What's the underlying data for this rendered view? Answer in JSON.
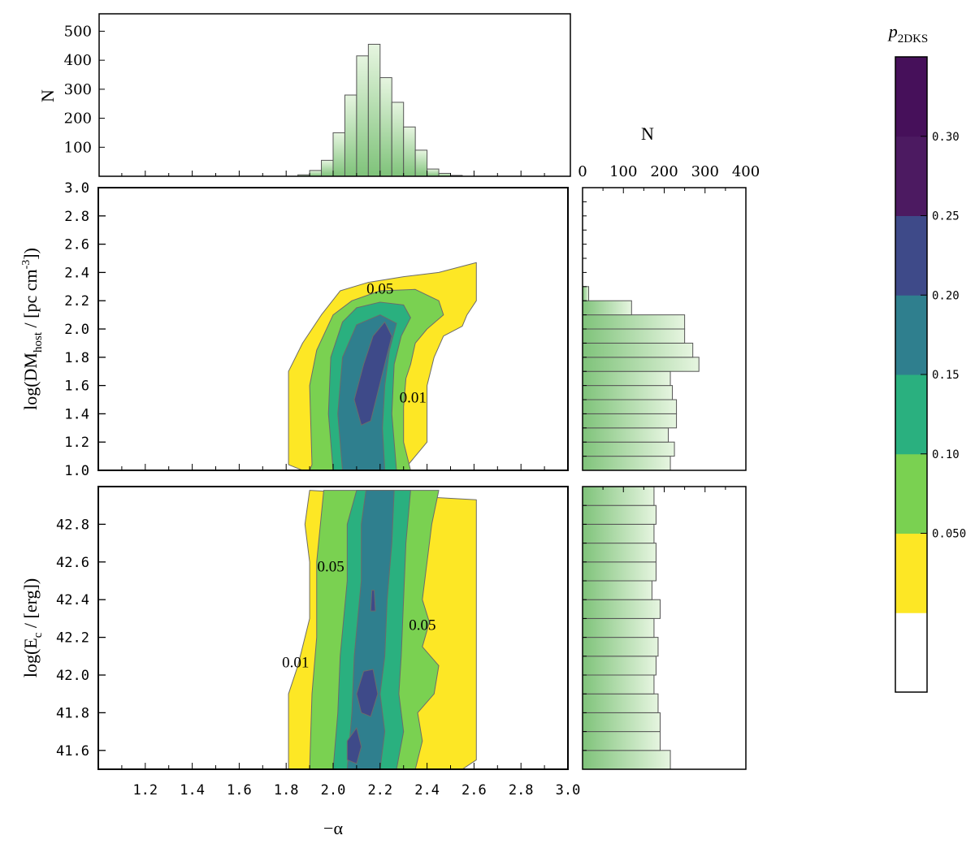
{
  "colors": {
    "yellow": "#fde725",
    "green": "#7ad151",
    "teal": "#2ab07f",
    "blue_teal": "#2f7f8e",
    "blue": "#3e4a89",
    "purple": "#4c1a61",
    "dark_purple": "#46105a",
    "hist_fill_light": "#e6f5e0",
    "hist_fill_dark": "#7fc37a",
    "hist_edge": "#555555"
  },
  "chart_data": [
    {
      "id": "top_hist",
      "type": "bar",
      "ylabel": "N",
      "xlim": [
        1.0,
        3.0
      ],
      "ylim": [
        0,
        560
      ],
      "yticks": [
        "100",
        "200",
        "300",
        "400",
        "500"
      ],
      "bin_width": 0.05,
      "bin_left": [
        1.85,
        1.9,
        1.95,
        2.0,
        2.05,
        2.1,
        2.15,
        2.2,
        2.25,
        2.3,
        2.35,
        2.4,
        2.45,
        2.5
      ],
      "values": [
        5,
        20,
        55,
        150,
        280,
        415,
        455,
        340,
        255,
        170,
        90,
        25,
        10,
        3
      ]
    },
    {
      "id": "contour_dm",
      "type": "area",
      "xlabel": "",
      "ylabel_main": "log(DM",
      "ylabel_sub": "host",
      "ylabel_rest": " / [pc cm",
      "ylabel_sup": "-3",
      "ylabel_end": "])",
      "xlim": [
        1.0,
        3.0
      ],
      "ylim": [
        1.0,
        3.0
      ],
      "yticks": [
        "1.0",
        "1.2",
        "1.4",
        "1.6",
        "1.8",
        "2.0",
        "2.2",
        "2.4",
        "2.6",
        "2.8",
        "3.0"
      ],
      "contour_labels": [
        {
          "text": "0.05",
          "x": 2.2,
          "y": 2.25
        },
        {
          "text": "0.01",
          "x": 2.34,
          "y": 1.48
        }
      ],
      "levels": [
        {
          "color_key": "yellow",
          "points": [
            [
              1.81,
              1.04
            ],
            [
              1.81,
              1.7
            ],
            [
              1.87,
              1.9
            ],
            [
              1.95,
              2.1
            ],
            [
              2.03,
              2.27
            ],
            [
              2.15,
              2.33
            ],
            [
              2.3,
              2.37
            ],
            [
              2.45,
              2.4
            ],
            [
              2.61,
              2.47
            ],
            [
              2.61,
              2.2
            ],
            [
              2.57,
              2.1
            ],
            [
              2.55,
              2.02
            ],
            [
              2.47,
              1.95
            ],
            [
              2.43,
              1.8
            ],
            [
              2.4,
              1.6
            ],
            [
              2.4,
              1.2
            ],
            [
              2.3,
              1.0
            ],
            [
              1.87,
              1.0
            ]
          ]
        },
        {
          "color_key": "green",
          "points": [
            [
              1.91,
              1.04
            ],
            [
              1.9,
              1.6
            ],
            [
              1.93,
              1.85
            ],
            [
              2.0,
              2.1
            ],
            [
              2.08,
              2.2
            ],
            [
              2.2,
              2.27
            ],
            [
              2.35,
              2.28
            ],
            [
              2.45,
              2.2
            ],
            [
              2.47,
              2.1
            ],
            [
              2.4,
              2.0
            ],
            [
              2.35,
              1.9
            ],
            [
              2.33,
              1.75
            ],
            [
              2.31,
              1.65
            ],
            [
              2.3,
              1.45
            ],
            [
              2.3,
              1.2
            ],
            [
              2.33,
              1.0
            ],
            [
              1.9,
              1.0
            ]
          ]
        },
        {
          "color_key": "teal",
          "points": [
            [
              2.0,
              1.0
            ],
            [
              1.98,
              1.4
            ],
            [
              1.99,
              1.8
            ],
            [
              2.04,
              2.05
            ],
            [
              2.1,
              2.15
            ],
            [
              2.2,
              2.19
            ],
            [
              2.3,
              2.17
            ],
            [
              2.33,
              2.08
            ],
            [
              2.29,
              1.95
            ],
            [
              2.26,
              1.75
            ],
            [
              2.25,
              1.4
            ],
            [
              2.27,
              1.0
            ]
          ]
        },
        {
          "color_key": "blue_teal",
          "points": [
            [
              2.04,
              1.0
            ],
            [
              2.02,
              1.4
            ],
            [
              2.04,
              1.8
            ],
            [
              2.1,
              2.03
            ],
            [
              2.2,
              2.1
            ],
            [
              2.27,
              2.04
            ],
            [
              2.24,
              1.85
            ],
            [
              2.22,
              1.6
            ],
            [
              2.21,
              1.3
            ],
            [
              2.22,
              1.0
            ]
          ]
        },
        {
          "color_key": "blue",
          "points": [
            [
              2.12,
              1.32
            ],
            [
              2.09,
              1.5
            ],
            [
              2.13,
              1.75
            ],
            [
              2.17,
              1.95
            ],
            [
              2.22,
              2.05
            ],
            [
              2.25,
              1.95
            ],
            [
              2.22,
              1.75
            ],
            [
              2.19,
              1.55
            ],
            [
              2.16,
              1.35
            ]
          ]
        }
      ]
    },
    {
      "id": "right_hist_dm",
      "type": "bar",
      "orientation": "horizontal",
      "xlabel": "N",
      "xticks": [
        "0",
        "100",
        "200",
        "300",
        "400"
      ],
      "xlim": [
        0,
        400
      ],
      "ylim": [
        1.0,
        3.0
      ],
      "bin_height": 0.1,
      "bin_bottom": [
        1.0,
        1.1,
        1.2,
        1.3,
        1.4,
        1.5,
        1.6,
        1.7,
        1.8,
        1.9,
        2.0,
        2.1,
        2.2,
        2.3
      ],
      "values": [
        215,
        225,
        210,
        230,
        230,
        220,
        215,
        285,
        270,
        250,
        250,
        120,
        15,
        0
      ]
    },
    {
      "id": "contour_ec",
      "type": "area",
      "xlabel": "−α",
      "ylabel_main": "log(E",
      "ylabel_sub": "c",
      "ylabel_rest": " / [erg])",
      "xlim": [
        1.0,
        3.0
      ],
      "ylim": [
        41.5,
        43.0
      ],
      "xticks": [
        "1.2",
        "1.4",
        "1.6",
        "1.8",
        "2.0",
        "2.2",
        "2.4",
        "2.6",
        "2.8",
        "3.0"
      ],
      "yticks": [
        "41.6",
        "41.8",
        "42.0",
        "42.2",
        "42.4",
        "42.6",
        "42.8"
      ],
      "contour_labels": [
        {
          "text": "0.05",
          "x": 1.99,
          "y": 42.55
        },
        {
          "text": "0.01",
          "x": 1.84,
          "y": 42.04
        },
        {
          "text": "0.05",
          "x": 2.38,
          "y": 42.24
        }
      ],
      "levels": [
        {
          "color_key": "yellow",
          "points": [
            [
              1.81,
              41.5
            ],
            [
              1.81,
              41.9
            ],
            [
              1.85,
              42.05
            ],
            [
              1.9,
              42.3
            ],
            [
              1.9,
              42.6
            ],
            [
              1.88,
              42.8
            ],
            [
              1.9,
              42.98
            ],
            [
              2.61,
              42.93
            ],
            [
              2.61,
              41.55
            ],
            [
              2.55,
              41.5
            ]
          ]
        },
        {
          "color_key": "green",
          "points": [
            [
              1.9,
              41.5
            ],
            [
              1.91,
              41.9
            ],
            [
              1.93,
              42.2
            ],
            [
              1.93,
              42.6
            ],
            [
              1.96,
              42.98
            ],
            [
              2.45,
              42.98
            ],
            [
              2.42,
              42.8
            ],
            [
              2.4,
              42.6
            ],
            [
              2.38,
              42.4
            ],
            [
              2.41,
              42.28
            ],
            [
              2.38,
              42.15
            ],
            [
              2.45,
              42.05
            ],
            [
              2.43,
              41.9
            ],
            [
              2.36,
              41.8
            ],
            [
              2.38,
              41.65
            ],
            [
              2.35,
              41.5
            ]
          ]
        },
        {
          "color_key": "teal",
          "points": [
            [
              2.0,
              41.5
            ],
            [
              2.02,
              41.8
            ],
            [
              2.03,
              42.1
            ],
            [
              2.06,
              42.5
            ],
            [
              2.06,
              42.8
            ],
            [
              2.1,
              42.98
            ],
            [
              2.33,
              42.98
            ],
            [
              2.31,
              42.7
            ],
            [
              2.3,
              42.4
            ],
            [
              2.29,
              42.1
            ],
            [
              2.28,
              41.9
            ],
            [
              2.3,
              41.7
            ],
            [
              2.27,
              41.5
            ]
          ]
        },
        {
          "color_key": "blue_teal",
          "points": [
            [
              2.06,
              41.5
            ],
            [
              2.08,
              41.8
            ],
            [
              2.09,
              42.1
            ],
            [
              2.12,
              42.5
            ],
            [
              2.12,
              42.8
            ],
            [
              2.14,
              42.98
            ],
            [
              2.26,
              42.98
            ],
            [
              2.25,
              42.7
            ],
            [
              2.23,
              42.4
            ],
            [
              2.22,
              42.1
            ],
            [
              2.2,
              41.9
            ],
            [
              2.22,
              41.7
            ],
            [
              2.2,
              41.5
            ]
          ]
        },
        {
          "color_key": "blue",
          "points": [
            [
              2.06,
              41.55
            ],
            [
              2.06,
              41.65
            ],
            [
              2.1,
              41.72
            ],
            [
              2.12,
              41.62
            ],
            [
              2.1,
              41.53
            ]
          ]
        },
        {
          "color_key": "blue",
          "points": [
            [
              2.12,
              41.8
            ],
            [
              2.1,
              41.9
            ],
            [
              2.13,
              42.02
            ],
            [
              2.17,
              42.03
            ],
            [
              2.19,
              41.9
            ],
            [
              2.16,
              41.78
            ]
          ]
        },
        {
          "color_key": "blue",
          "points": [
            [
              2.16,
              42.34
            ],
            [
              2.165,
              42.45
            ],
            [
              2.175,
              42.45
            ],
            [
              2.18,
              42.34
            ]
          ]
        }
      ]
    },
    {
      "id": "right_hist_ec",
      "type": "bar",
      "orientation": "horizontal",
      "xlim": [
        0,
        400
      ],
      "ylim": [
        41.5,
        43.0
      ],
      "bin_height": 0.1,
      "bin_bottom": [
        41.5,
        41.6,
        41.7,
        41.8,
        41.9,
        42.0,
        42.1,
        42.2,
        42.3,
        42.4,
        42.5,
        42.6,
        42.7,
        42.8,
        42.9
      ],
      "values": [
        215,
        190,
        190,
        185,
        175,
        180,
        185,
        175,
        190,
        170,
        180,
        180,
        175,
        180,
        175
      ]
    },
    {
      "id": "colorbar",
      "type": "heatmap",
      "title_main": "p",
      "title_sub": "2DKS",
      "tick_labels": [
        "0.050",
        "0.10",
        "0.15",
        "0.20",
        "0.25",
        "0.30"
      ],
      "band_colors": [
        "#ffffff",
        "#fde725",
        "#7ad151",
        "#2ab07f",
        "#2f7f8e",
        "#3e4a89",
        "#4c1a61",
        "#46105a"
      ]
    }
  ]
}
